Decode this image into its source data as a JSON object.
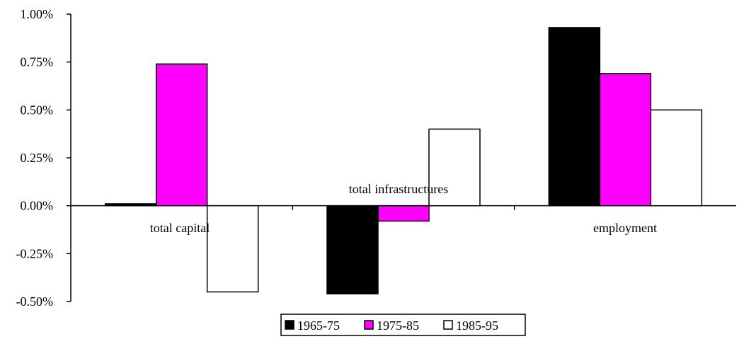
{
  "chart_data": {
    "type": "bar",
    "categories": [
      "total capital",
      "total infrastructures",
      "employment"
    ],
    "series": [
      {
        "name": "1965-75",
        "values": [
          0.01,
          -0.46,
          0.93
        ]
      },
      {
        "name": "1975-85",
        "values": [
          0.74,
          -0.08,
          0.69
        ]
      },
      {
        "name": "1985-95",
        "values": [
          -0.45,
          0.4,
          0.5
        ]
      }
    ],
    "y_ticks": [
      "1.00%",
      "0.75%",
      "0.50%",
      "0.25%",
      "0.00%",
      "-0.25%",
      "-0.50%"
    ],
    "ylim": [
      -0.5,
      1.0
    ],
    "grid": false,
    "legend_position": "bottom",
    "colors": {
      "1965-75": "#000000",
      "1975-85": "#ff00ff",
      "1985-95": "#ffffff",
      "outline": "#000000"
    }
  }
}
